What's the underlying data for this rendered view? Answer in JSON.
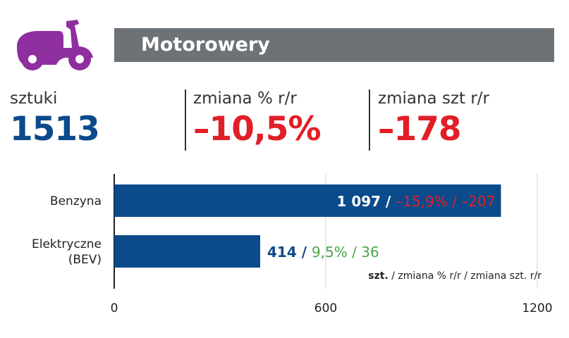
{
  "header": {
    "title": "Motorowery",
    "icon": "scooter-icon",
    "icon_color": "#8f2e9f"
  },
  "stats": [
    {
      "label": "sztuki",
      "value": "1513",
      "color": "#0b4a8b"
    },
    {
      "label": "zmiana % r/r",
      "value": "–10,5%",
      "color": "#e11f26"
    },
    {
      "label": "zmiana szt r/r",
      "value": "–178",
      "color": "#e11f26"
    }
  ],
  "chart_data": {
    "type": "bar",
    "orientation": "horizontal",
    "categories": [
      "Benzyna",
      "Elektryczne (BEV)"
    ],
    "category_lines": [
      [
        "Benzyna"
      ],
      [
        "Elektryczne",
        "(BEV)"
      ]
    ],
    "values": [
      1097,
      414
    ],
    "pct_change": [
      "–15,9%",
      "9,5%"
    ],
    "abs_change": [
      "–207",
      "36"
    ],
    "value_labels": [
      "1 097",
      "414"
    ],
    "change_colors": [
      "#e11f26",
      "#4aa64a"
    ],
    "bar_color": "#0b4a8b",
    "xlim": [
      0,
      1200
    ],
    "xticks": [
      0,
      600,
      1200
    ],
    "grid": true,
    "legend_note": {
      "bold": "szt.",
      "rest": " / zmiana % r/r / zmiana szt. r/r"
    }
  }
}
